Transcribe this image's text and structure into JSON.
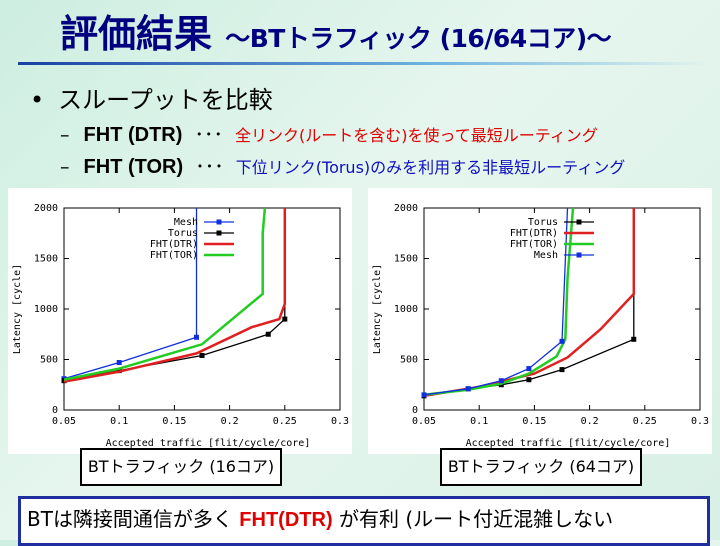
{
  "title": {
    "main": "評価結果",
    "sub": "～BTトラフィック (16/64コア)～"
  },
  "bullet": {
    "text": "スループットを比較"
  },
  "items": [
    {
      "dash": "–",
      "name": "FHT (DTR)",
      "dots": "･･･",
      "desc": "全リンク(ルートを含む)を使って最短ルーティング"
    },
    {
      "dash": "–",
      "name": "FHT (TOR)",
      "dots": "･･･",
      "desc": "下位リンク(Torus)のみを利用する非最短ルーティング"
    }
  ],
  "captions": [
    "BTトラフィック (16コア)",
    "BTトラフィック (64コア)"
  ],
  "conclusion": {
    "pre": "BTは隣接間通信が多く ",
    "em": "FHT(DTR)",
    "post": " が有利 (ルート付近混雑しない"
  },
  "colors": {
    "mesh": "#1030e0",
    "torus": "#000000",
    "dtr": "#e02020",
    "tor": "#22cc22"
  },
  "chart_data": [
    {
      "type": "line",
      "xlabel": "Accepted traffic [flit/cycle/core]",
      "ylabel": "Latency [cycle]",
      "xlim": [
        0.05,
        0.3
      ],
      "ylim": [
        0,
        2000
      ],
      "xticks": [
        "0.05",
        "0.1",
        "0.15",
        "0.2",
        "0.25",
        "0.3"
      ],
      "yticks": [
        "0",
        "500",
        "1000",
        "1500",
        "2000"
      ],
      "legend": [
        "Mesh",
        "Torus",
        "FHT(DTR)",
        "FHT(TOR)"
      ],
      "series": [
        {
          "name": "Mesh",
          "key": "mesh",
          "marker": true,
          "x": [
            0.05,
            0.1,
            0.17,
            0.17
          ],
          "y": [
            310,
            470,
            720,
            2000
          ]
        },
        {
          "name": "Torus",
          "key": "torus",
          "marker": true,
          "x": [
            0.05,
            0.1,
            0.175,
            0.235,
            0.25,
            0.25
          ],
          "y": [
            290,
            390,
            540,
            750,
            900,
            2000
          ]
        },
        {
          "name": "FHT(DTR)",
          "key": "dtr",
          "marker": false,
          "x": [
            0.05,
            0.1,
            0.17,
            0.22,
            0.245,
            0.25,
            0.25
          ],
          "y": [
            280,
            380,
            560,
            820,
            900,
            1050,
            2000
          ]
        },
        {
          "name": "FHT(TOR)",
          "key": "tor",
          "marker": false,
          "x": [
            0.05,
            0.1,
            0.175,
            0.23,
            0.23,
            0.232
          ],
          "y": [
            300,
            410,
            650,
            1150,
            1750,
            2000
          ]
        }
      ]
    },
    {
      "type": "line",
      "xlabel": "Accepted traffic [flit/cycle/core]",
      "ylabel": "Latency [cycle]",
      "xlim": [
        0.05,
        0.3
      ],
      "ylim": [
        0,
        2000
      ],
      "xticks": [
        "0.05",
        "0.1",
        "0.15",
        "0.2",
        "0.25",
        "0.3"
      ],
      "yticks": [
        "0",
        "500",
        "1000",
        "1500",
        "2000"
      ],
      "legend": [
        "Torus",
        "FHT(DTR)",
        "FHT(TOR)",
        "Mesh"
      ],
      "series": [
        {
          "name": "Torus",
          "key": "torus",
          "marker": true,
          "x": [
            0.05,
            0.09,
            0.12,
            0.145,
            0.175,
            0.24,
            0.24
          ],
          "y": [
            140,
            210,
            250,
            300,
            400,
            700,
            2000
          ]
        },
        {
          "name": "FHT(DTR)",
          "key": "dtr",
          "marker": false,
          "x": [
            0.05,
            0.1,
            0.15,
            0.18,
            0.21,
            0.24,
            0.24
          ],
          "y": [
            140,
            230,
            360,
            520,
            800,
            1150,
            2000
          ]
        },
        {
          "name": "FHT(TOR)",
          "key": "tor",
          "marker": false,
          "x": [
            0.05,
            0.09,
            0.12,
            0.145,
            0.17,
            0.178,
            0.18,
            0.185
          ],
          "y": [
            150,
            200,
            260,
            360,
            530,
            700,
            1300,
            2000
          ]
        },
        {
          "name": "Mesh",
          "key": "mesh",
          "marker": true,
          "x": [
            0.05,
            0.09,
            0.12,
            0.145,
            0.175,
            0.18
          ],
          "y": [
            150,
            210,
            290,
            410,
            680,
            2000
          ]
        }
      ]
    }
  ]
}
